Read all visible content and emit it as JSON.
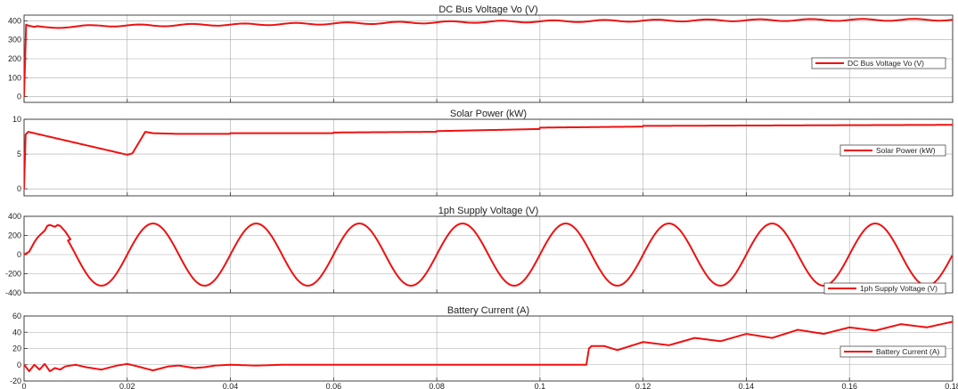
{
  "colors": {
    "series": "#ee1111",
    "axes": "#333333",
    "grid": "#aaaaaa",
    "background": "#ffffff"
  },
  "chart_data": [
    {
      "type": "line",
      "title": "DC Bus Voltage Vo (V)",
      "xlim": [
        0,
        0.18
      ],
      "ylim": [
        -30,
        430
      ],
      "yticks": [
        0,
        100,
        200,
        300,
        400
      ],
      "ytick_labels": [
        "0",
        "100",
        "200",
        "300",
        "400"
      ],
      "xticks": [
        0,
        0.02,
        0.04,
        0.06,
        0.08,
        0.1,
        0.12,
        0.14,
        0.16,
        0.18
      ],
      "grid": true,
      "legend": "right",
      "legend_label": "DC Bus Voltage Vo (V)",
      "series": [
        {
          "x": [
            0,
            0.0004,
            0.0008,
            0.002,
            0.004,
            0.006,
            0.008,
            0.01,
            0.015,
            0.02,
            0.025,
            0.03,
            0.04,
            0.05,
            0.06,
            0.07,
            0.08,
            0.09,
            0.1,
            0.11,
            0.12,
            0.13,
            0.14,
            0.15,
            0.16,
            0.17,
            0.18
          ],
          "y": [
            0,
            380,
            375,
            368,
            364,
            366,
            369,
            370,
            374,
            376,
            375,
            378,
            380,
            383,
            386,
            389,
            392,
            395,
            397,
            399,
            401,
            402,
            403,
            404,
            405,
            405,
            406
          ],
          "ripple": {
            "amplitude": 5,
            "period": 0.01
          }
        }
      ]
    },
    {
      "type": "line",
      "title": "Solar Power (kW)",
      "xlim": [
        0,
        0.18
      ],
      "ylim": [
        -1,
        10
      ],
      "yticks": [
        0,
        5,
        10
      ],
      "ytick_labels": [
        "0",
        "5",
        "10"
      ],
      "xticks": [
        0,
        0.02,
        0.04,
        0.06,
        0.08,
        0.1,
        0.12,
        0.14,
        0.16,
        0.18
      ],
      "grid": true,
      "legend": "right",
      "legend_label": "Solar Power (kW)",
      "series": [
        {
          "x": [
            0,
            0.0003,
            0.0008,
            0.02,
            0.021,
            0.0235,
            0.025,
            0.03,
            0.0399,
            0.04,
            0.0599,
            0.06,
            0.0799,
            0.08,
            0.0999,
            0.1,
            0.1199,
            0.12,
            0.14,
            0.16,
            0.18
          ],
          "y": [
            0,
            7.8,
            8.2,
            4.9,
            5.1,
            8.2,
            8.0,
            7.9,
            7.9,
            8.0,
            8.0,
            8.1,
            8.2,
            8.3,
            8.6,
            8.8,
            8.95,
            9.05,
            9.1,
            9.15,
            9.2
          ]
        }
      ]
    },
    {
      "type": "line",
      "title": "1ph Supply Voltage (V)",
      "xlim": [
        0,
        0.18
      ],
      "ylim": [
        -400,
        400
      ],
      "yticks": [
        -400,
        -200,
        0,
        200,
        400
      ],
      "ytick_labels": [
        "-400",
        "-200",
        "0",
        "200",
        "400"
      ],
      "xticks": [
        0,
        0.02,
        0.04,
        0.06,
        0.08,
        0.1,
        0.12,
        0.14,
        0.16,
        0.18
      ],
      "grid": true,
      "legend": "bottom-right",
      "legend_label": "1ph Supply Voltage (V)",
      "series": [
        {
          "x": [
            0,
            0.001,
            0.002,
            0.0025,
            0.003,
            0.004,
            0.0045,
            0.005,
            0.006,
            0.0065,
            0.007,
            0.008,
            0.009
          ],
          "y": [
            0,
            30,
            130,
            170,
            200,
            250,
            300,
            310,
            290,
            310,
            300,
            240,
            160
          ],
          "sine": {
            "amplitude": 325,
            "period": 0.02,
            "phase": 0,
            "from": 0.0085
          }
        }
      ]
    },
    {
      "type": "line",
      "title": "Battery Current (A)",
      "xlim": [
        0,
        0.18
      ],
      "ylim": [
        -20,
        60
      ],
      "yticks": [
        -20,
        0,
        20,
        40,
        60
      ],
      "ytick_labels": [
        "-20",
        "0",
        "20",
        "40",
        "60"
      ],
      "xticks": [
        0,
        0.02,
        0.04,
        0.06,
        0.08,
        0.1,
        0.12,
        0.14,
        0.16,
        0.18
      ],
      "xtick_labels": [
        "0",
        "0.02",
        "0.04",
        "0.06",
        "0.08",
        "0.1",
        "0.12",
        "0.14",
        "0.16",
        "0.18"
      ],
      "grid": true,
      "legend": "right",
      "legend_label": "Battery Current (A)",
      "series": [
        {
          "x": [
            0,
            0.001,
            0.002,
            0.003,
            0.004,
            0.005,
            0.006,
            0.007,
            0.008,
            0.009,
            0.01,
            0.012,
            0.015,
            0.018,
            0.02,
            0.022,
            0.025,
            0.028,
            0.03,
            0.033,
            0.035,
            0.037,
            0.04,
            0.045,
            0.05,
            0.07,
            0.09,
            0.109,
            0.1095,
            0.11,
            0.1125,
            0.115,
            0.12,
            0.125,
            0.13,
            0.135,
            0.14,
            0.145,
            0.15,
            0.155,
            0.16,
            0.165,
            0.17,
            0.175,
            0.18
          ],
          "y": [
            0,
            -8,
            0,
            -6,
            1,
            -8,
            -4,
            -6,
            -2,
            -1,
            0,
            -3,
            -6,
            -1,
            1,
            -2,
            -7,
            -2,
            -1,
            -4,
            -3,
            -1,
            0,
            -1,
            0,
            0,
            0,
            0,
            20,
            23,
            23,
            18,
            28,
            24,
            33,
            29,
            38,
            33,
            43,
            38,
            46,
            42,
            50,
            46,
            53
          ]
        }
      ]
    }
  ]
}
